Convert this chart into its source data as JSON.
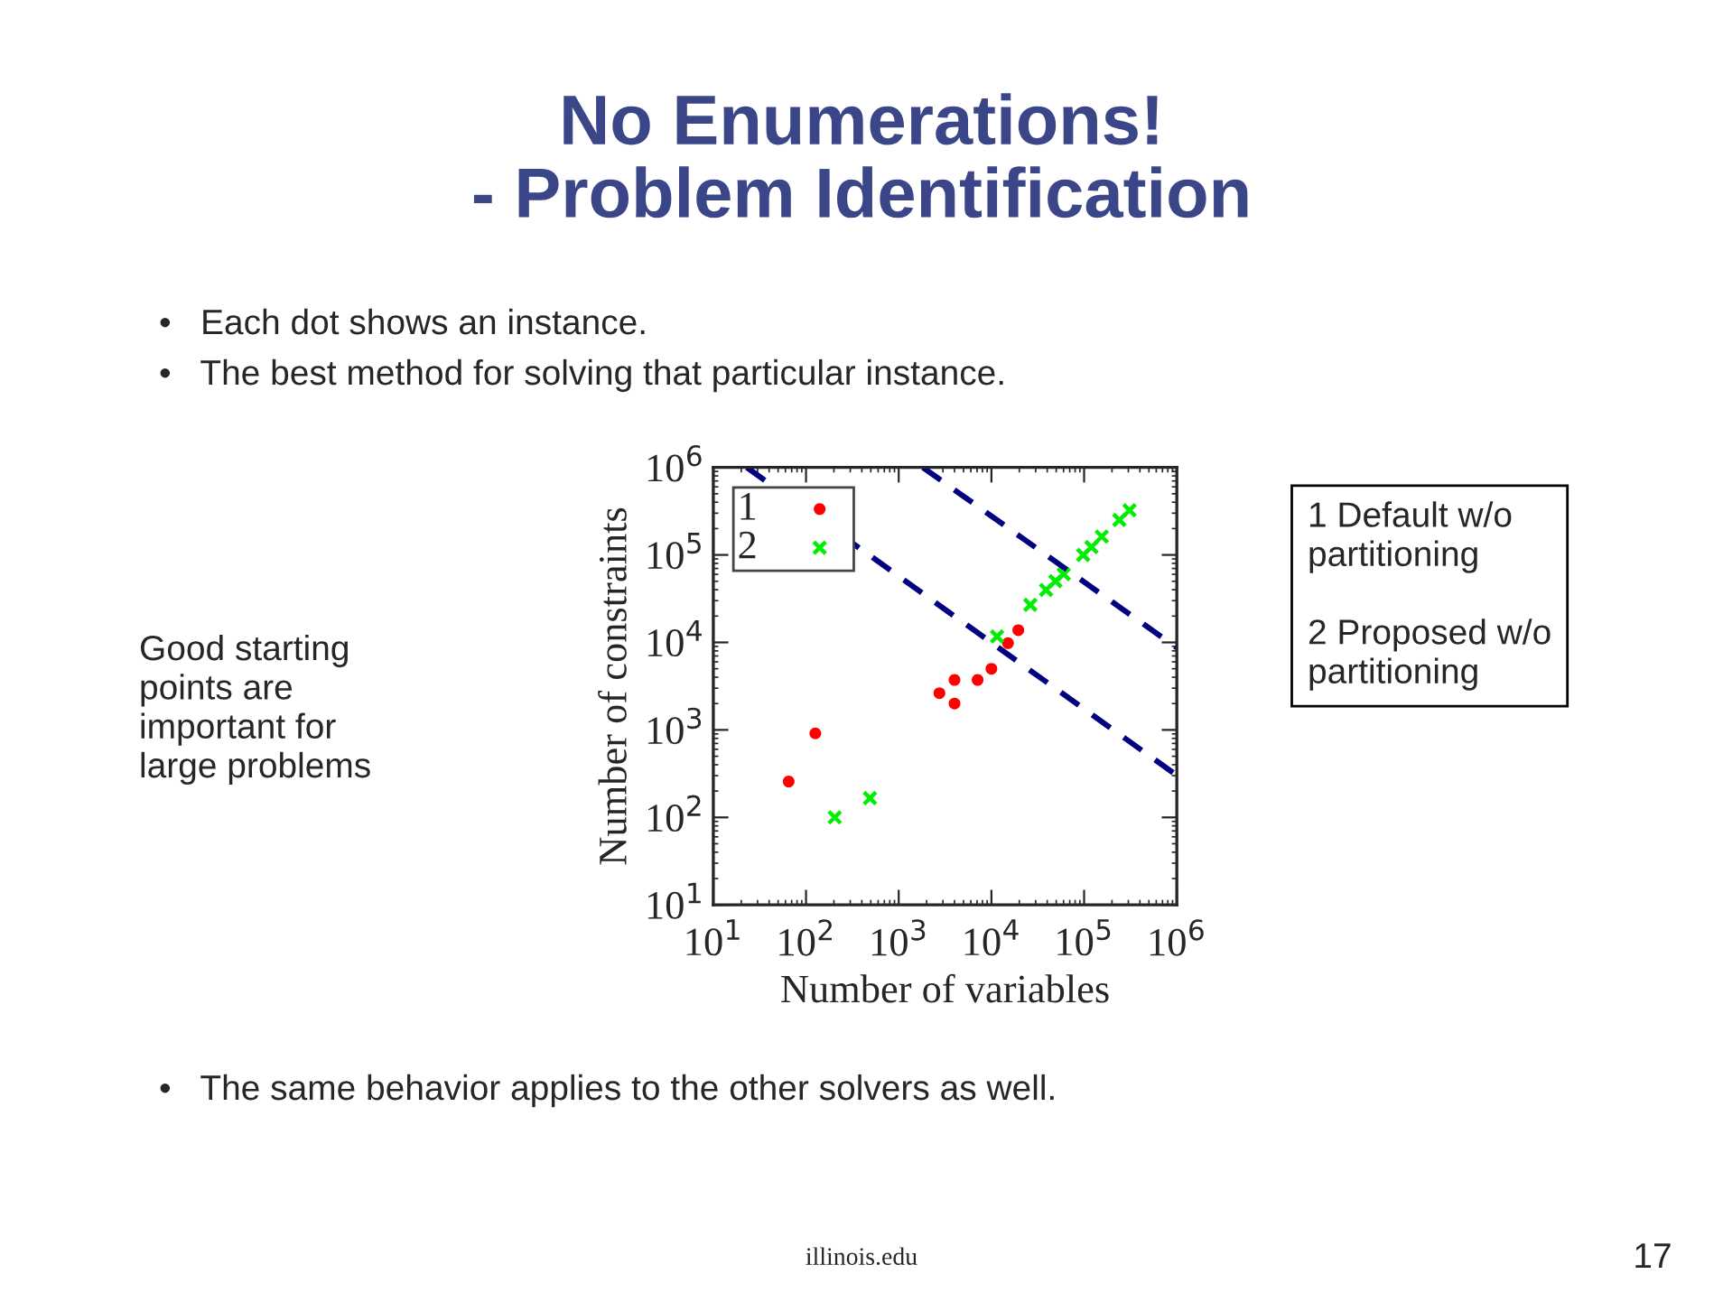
{
  "chart_data": {
    "type": "scatter",
    "title": "No Enumerations!\n- Problem Identification",
    "xlabel": "Number of variables",
    "ylabel": "Number of constraints",
    "log": "xy",
    "xlim": [
      10,
      1000000
    ],
    "ylim": [
      10,
      1000000
    ],
    "xticks": [
      {
        "value": 10,
        "label": "10$^{1}$"
      },
      {
        "value": 100,
        "label": "10$^{2}$"
      },
      {
        "value": 1000,
        "label": "10$^{3}$"
      },
      {
        "value": 10000,
        "label": "10$^{4}$"
      },
      {
        "value": 100000,
        "label": "10$^{5}$"
      },
      {
        "value": 1000000,
        "label": "10$^{6}$"
      }
    ],
    "yticks": [
      {
        "value": 10,
        "label": "10$^{1}$"
      },
      {
        "value": 100,
        "label": "10$^{2}$"
      },
      {
        "value": 1000,
        "label": "10$^{3}$"
      },
      {
        "value": 10000,
        "label": "10$^{4}$"
      },
      {
        "value": 100000,
        "label": "10$^{5}$"
      },
      {
        "value": 1000000,
        "label": "10$^{6}$"
      }
    ],
    "grid": false,
    "legend": "top left",
    "series": [
      {
        "name": "1",
        "marker": "circle",
        "color": "#ff0000",
        "x": [
          65,
          126,
          2750,
          4000,
          4000,
          7100,
          10000,
          15100,
          19500
        ],
        "values": [
          257,
          912,
          2630,
          3720,
          2000,
          3720,
          5000,
          9800,
          13800
        ]
      },
      {
        "name": "2",
        "marker": "cross",
        "color": "#00ee00",
        "x": [
          204,
          490,
          11500,
          26300,
          38900,
          49000,
          60300,
          97700,
          120000,
          155000,
          240000,
          309000
        ],
        "values": [
          100,
          166,
          11700,
          26900,
          39800,
          50100,
          60300,
          100000,
          123000,
          162000,
          251000,
          324000
        ]
      },
      {
        "type": "line",
        "line_style": "dashed",
        "marker": "none",
        "color": "#000080",
        "x": [
          23,
          1000000
        ],
        "values": [
          1000000,
          302
        ]
      },
      {
        "type": "line",
        "line_style": "dashed",
        "marker": "none",
        "color": "#000080",
        "x": [
          1820,
          1000000
        ],
        "values": [
          1000000,
          8700
        ]
      }
    ],
    "annotations": [
      "•   Each dot shows an instance.",
      "•   The best method for solving that particular instance.",
      "Good starting\npoints are\nimportant for\nlarge problems",
      "1 Default w/o\npartitioning\n\n2 Proposed w/o\npartitioning",
      "•   The same behavior applies to the other solvers as well.",
      "illinois.edu",
      "17"
    ]
  }
}
